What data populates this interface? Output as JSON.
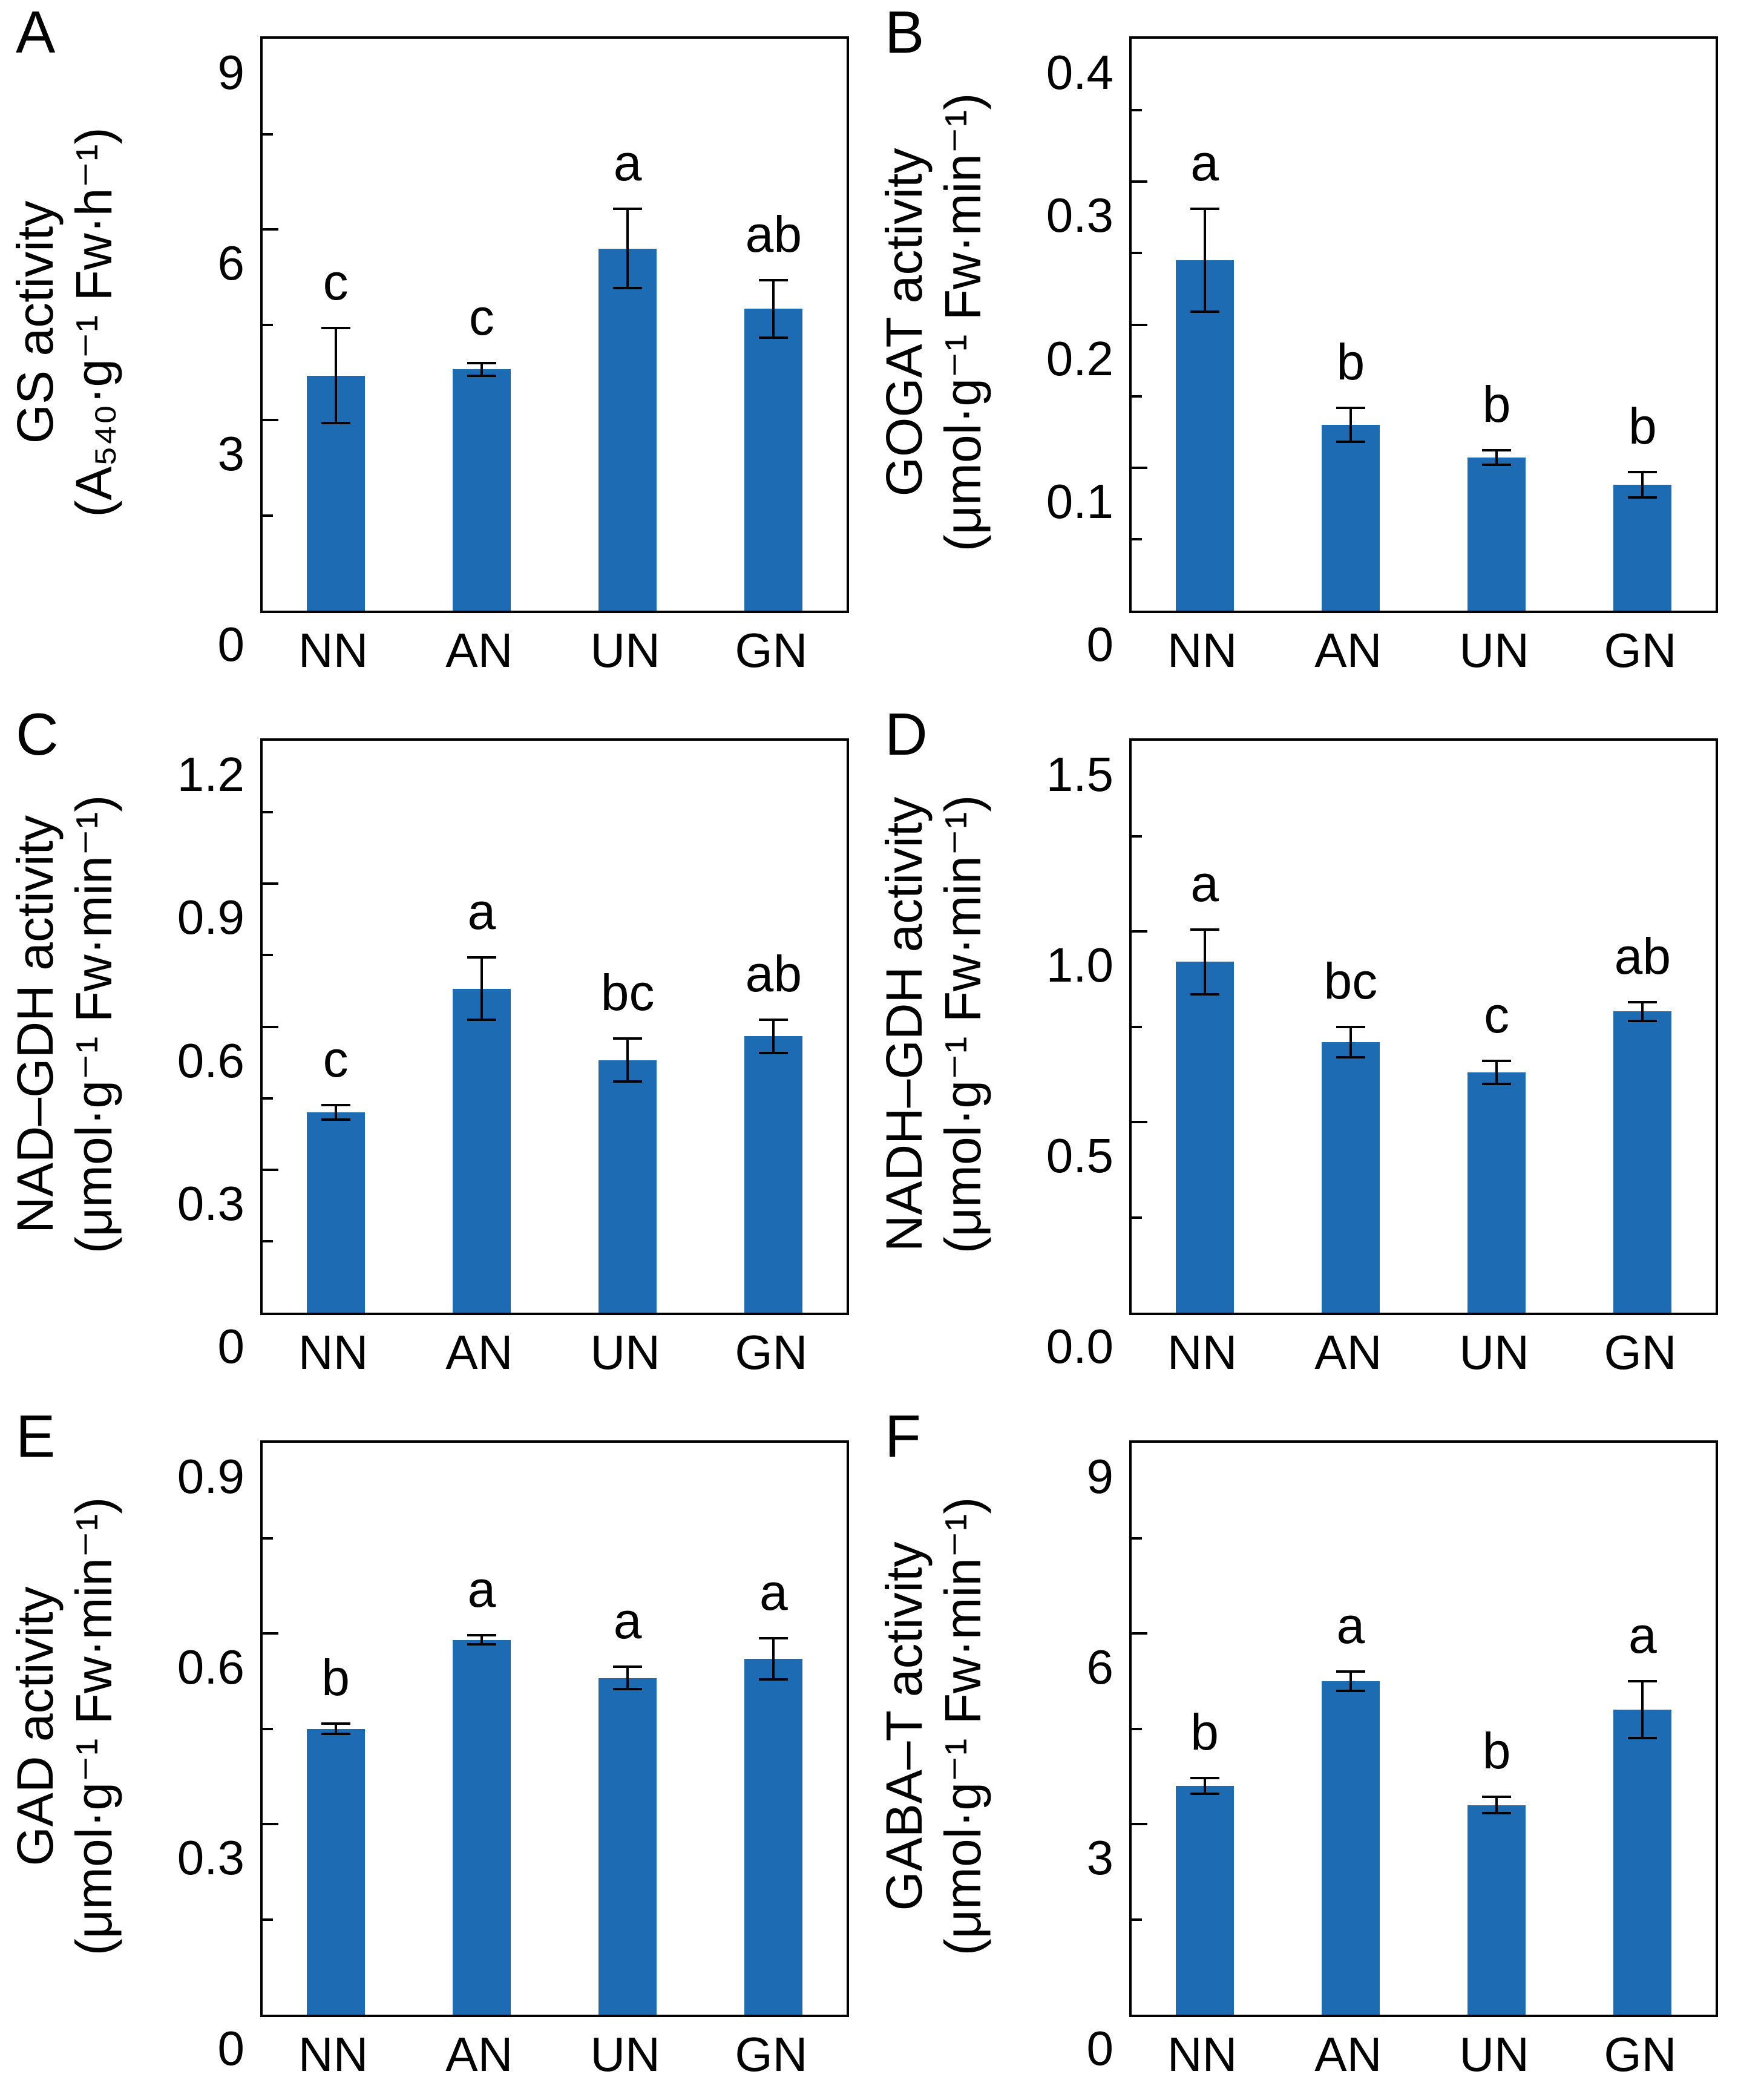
{
  "figure": {
    "background": "#ffffff",
    "bar_color": "#1C6BB3",
    "axis_color": "#000000",
    "treatments": [
      "NN",
      "AN",
      "UN",
      "GN"
    ]
  },
  "chart_data": [
    {
      "type": "bar",
      "panel": "A",
      "title": "GS activity",
      "ylabel_line1": "GS activity",
      "ylabel_unit": "(A₅₄₀·g⁻¹ Fw·h⁻¹)",
      "categories": [
        "NN",
        "AN",
        "UN",
        "GN"
      ],
      "values": [
        3.7,
        3.8,
        5.7,
        4.75
      ],
      "errors": [
        0.75,
        0.1,
        0.62,
        0.45
      ],
      "sig_letters": [
        "c",
        "c",
        "a",
        "ab"
      ],
      "ylim": [
        0,
        9
      ],
      "ytick_step": 3,
      "yminor_step": 1.5,
      "ytick_labels": [
        "0",
        "3",
        "6",
        "9"
      ],
      "grid": "off",
      "legend": "none"
    },
    {
      "type": "bar",
      "panel": "B",
      "title": "GOGAT activity",
      "ylabel_line1": "GOGAT activity",
      "ylabel_unit": "(μmol·g⁻¹ Fw·min⁻¹)",
      "categories": [
        "NN",
        "AN",
        "UN",
        "GN"
      ],
      "values": [
        0.245,
        0.13,
        0.107,
        0.088
      ],
      "errors": [
        0.036,
        0.012,
        0.005,
        0.009
      ],
      "sig_letters": [
        "a",
        "b",
        "b",
        "b"
      ],
      "ylim": [
        0,
        0.4
      ],
      "ytick_step": 0.1,
      "yminor_step": 0.05,
      "ytick_labels": [
        "0",
        "0.1",
        "0.2",
        "0.3",
        "0.4"
      ],
      "grid": "off",
      "legend": "none"
    },
    {
      "type": "bar",
      "panel": "C",
      "title": "NAD–GDH activity",
      "ylabel_line1": "NAD–GDH activity",
      "ylabel_unit": "(μmol·g⁻¹ Fw·min⁻¹)",
      "categories": [
        "NN",
        "AN",
        "UN",
        "GN"
      ],
      "values": [
        0.42,
        0.68,
        0.53,
        0.58
      ],
      "errors": [
        0.015,
        0.065,
        0.045,
        0.035
      ],
      "sig_letters": [
        "c",
        "a",
        "bc",
        "ab"
      ],
      "ylim": [
        0,
        1.2
      ],
      "ytick_step": 0.3,
      "yminor_step": 0.15,
      "ytick_labels": [
        "0",
        "0.3",
        "0.6",
        "0.9",
        "1.2"
      ],
      "grid": "off",
      "legend": "none"
    },
    {
      "type": "bar",
      "panel": "D",
      "title": "NADH–GDH activity",
      "ylabel_line1": "NADH–GDH activity",
      "ylabel_unit": "(μmol·g⁻¹ Fw·min⁻¹)",
      "categories": [
        "NN",
        "AN",
        "UN",
        "GN"
      ],
      "values": [
        0.92,
        0.71,
        0.63,
        0.79
      ],
      "errors": [
        0.085,
        0.04,
        0.03,
        0.025
      ],
      "sig_letters": [
        "a",
        "bc",
        "c",
        "ab"
      ],
      "ylim": [
        0,
        1.5
      ],
      "ytick_step": 0.5,
      "yminor_step": 0.25,
      "ytick_labels": [
        "0.0",
        "0.5",
        "1.0",
        "1.5"
      ],
      "grid": "off",
      "legend": "none"
    },
    {
      "type": "bar",
      "panel": "E",
      "title": "GAD activity",
      "ylabel_line1": "GAD activity",
      "ylabel_unit": "(μmol·g⁻¹ Fw·min⁻¹)",
      "categories": [
        "NN",
        "AN",
        "UN",
        "GN"
      ],
      "values": [
        0.45,
        0.59,
        0.53,
        0.56
      ],
      "errors": [
        0.008,
        0.007,
        0.018,
        0.032
      ],
      "sig_letters": [
        "b",
        "a",
        "a",
        "a"
      ],
      "ylim": [
        0,
        0.9
      ],
      "ytick_step": 0.3,
      "yminor_step": 0.15,
      "ytick_labels": [
        "0",
        "0.3",
        "0.6",
        "0.9"
      ],
      "grid": "off",
      "legend": "none"
    },
    {
      "type": "bar",
      "panel": "F",
      "title": "GABA–T activity",
      "ylabel_line1": "GABA–T activity",
      "ylabel_unit": "(μmol·g⁻¹ Fw·min⁻¹)",
      "categories": [
        "NN",
        "AN",
        "UN",
        "GN"
      ],
      "values": [
        3.6,
        5.25,
        3.3,
        4.8
      ],
      "errors": [
        0.12,
        0.15,
        0.13,
        0.45
      ],
      "sig_letters": [
        "b",
        "a",
        "b",
        "a"
      ],
      "ylim": [
        0,
        9
      ],
      "ytick_step": 3,
      "yminor_step": 1.5,
      "ytick_labels": [
        "0",
        "3",
        "6",
        "9"
      ],
      "grid": "off",
      "legend": "none"
    }
  ]
}
